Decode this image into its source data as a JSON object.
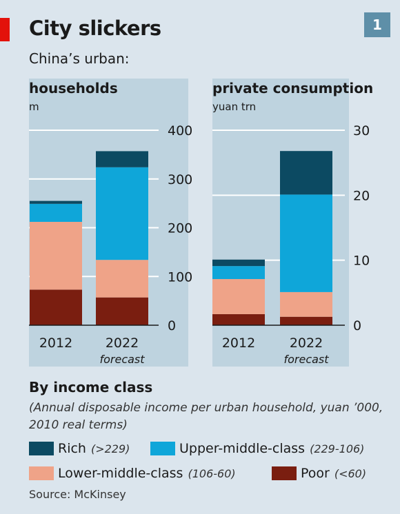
{
  "header": {
    "title": "City slickers",
    "badge": "1",
    "subtitle": "China’s urban:"
  },
  "chart_data": [
    {
      "type": "bar",
      "stacked": true,
      "title": "households",
      "unit": "m",
      "categories": [
        "2012",
        "2022"
      ],
      "category_notes": [
        "",
        "forecast"
      ],
      "ylim": [
        0,
        400
      ],
      "yticks": [
        0,
        100,
        200,
        300,
        400
      ],
      "grid": true,
      "axis_side": "right",
      "series": [
        {
          "name": "Poor",
          "values": [
            73,
            57
          ],
          "color": "#7a1e10"
        },
        {
          "name": "Lower-middle-class",
          "values": [
            139,
            77
          ],
          "color": "#efa388"
        },
        {
          "name": "Upper-middle-class",
          "values": [
            37,
            190
          ],
          "color": "#0fa6d9"
        },
        {
          "name": "Rich",
          "values": [
            6,
            33
          ],
          "color": "#0c4a62"
        }
      ]
    },
    {
      "type": "bar",
      "stacked": true,
      "title": "private consumption",
      "unit": "yuan trn",
      "categories": [
        "2012",
        "2022"
      ],
      "category_notes": [
        "",
        "forecast"
      ],
      "ylim": [
        0,
        30
      ],
      "yticks": [
        0,
        10,
        20,
        30
      ],
      "grid": true,
      "axis_side": "right",
      "series": [
        {
          "name": "Poor",
          "values": [
            1.7,
            1.3
          ],
          "color": "#7a1e10"
        },
        {
          "name": "Lower-middle-class",
          "values": [
            5.4,
            3.8
          ],
          "color": "#efa388"
        },
        {
          "name": "Upper-middle-class",
          "values": [
            2.0,
            15.0
          ],
          "color": "#0fa6d9"
        },
        {
          "name": "Rich",
          "values": [
            1.0,
            6.7
          ],
          "color": "#0c4a62"
        }
      ]
    }
  ],
  "legend": {
    "title": "By income class",
    "note": "(Annual disposable income per urban household, yuan ’000, 2010 real terms)",
    "items": [
      {
        "label": "Rich",
        "range": "(>229)",
        "color": "#0c4a62"
      },
      {
        "label": "Upper-middle-class",
        "range": "(229-106)",
        "color": "#0fa6d9"
      },
      {
        "label": "Lower-middle-class",
        "range": "(106-60)",
        "color": "#efa388"
      },
      {
        "label": "Poor",
        "range": "(<60)",
        "color": "#7a1e10"
      }
    ]
  },
  "source": "Source: McKinsey"
}
